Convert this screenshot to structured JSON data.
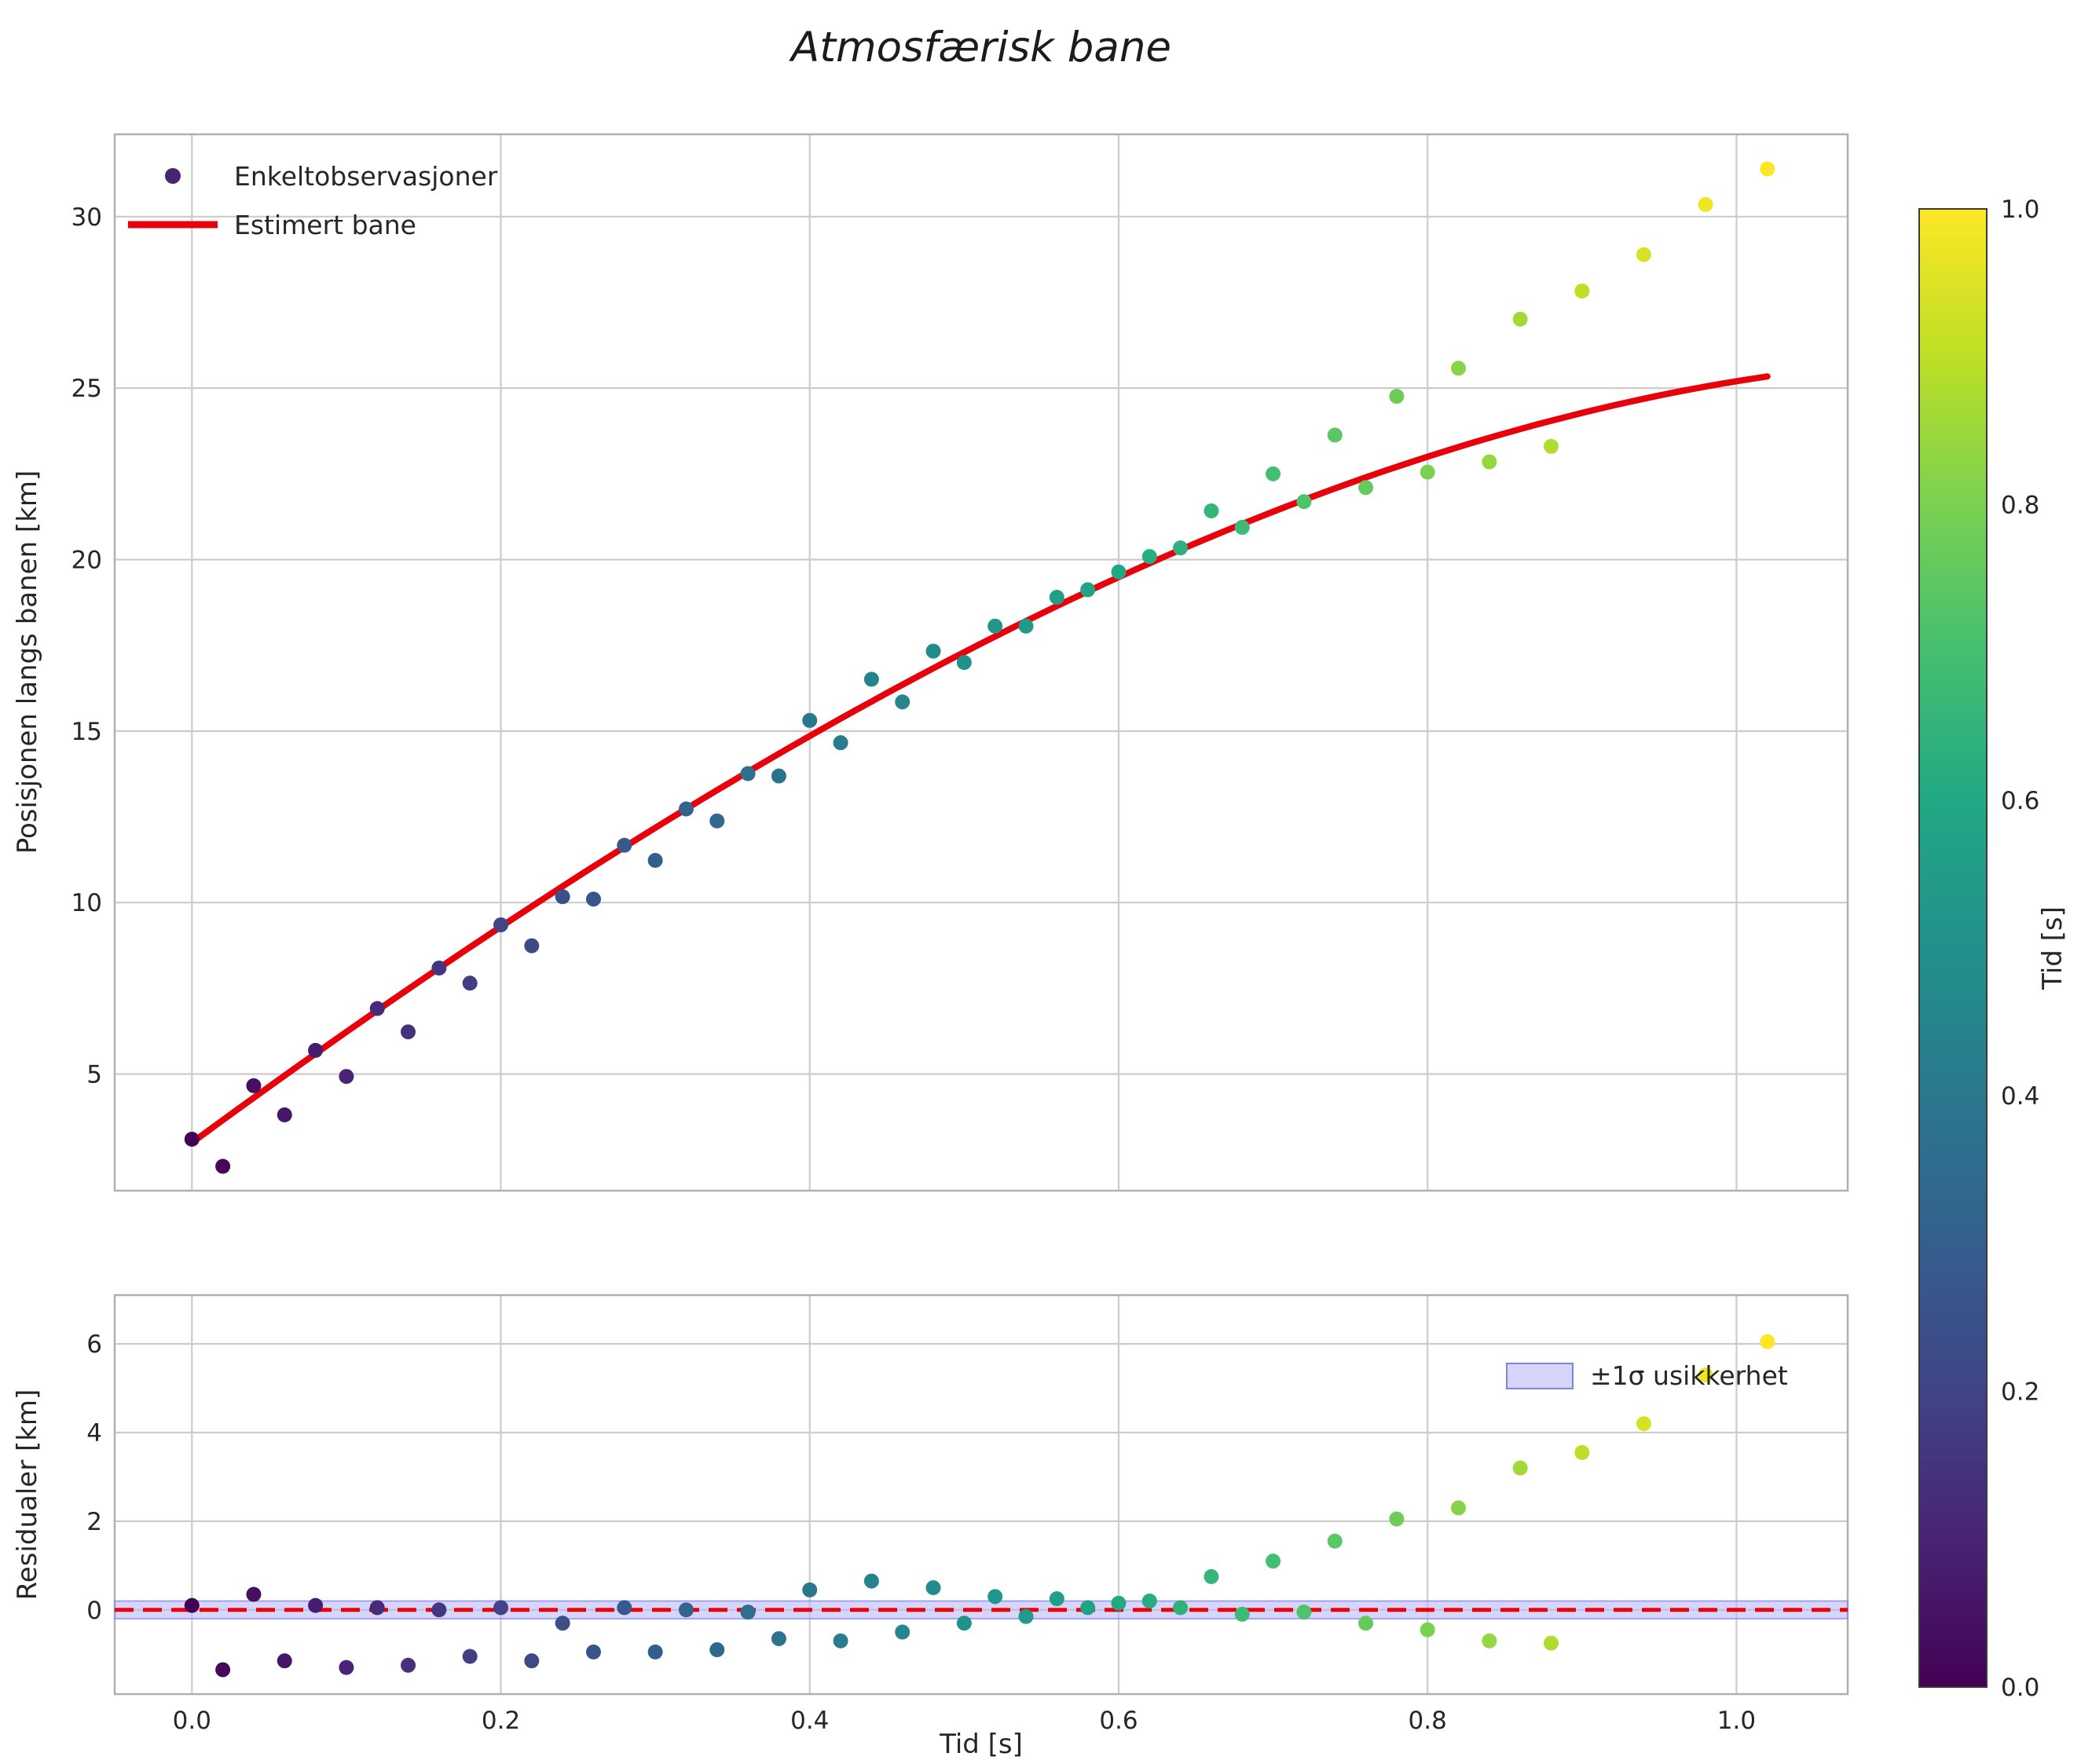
{
  "figure": {
    "title": "Atmosfærisk bane",
    "background": "#ffffff",
    "text_color": "#262626",
    "grid_color": "#cccccc",
    "spine_color": "#b0b0b0",
    "viridis_stops": [
      "#440154",
      "#482475",
      "#414487",
      "#345f8d",
      "#2a788e",
      "#21918c",
      "#22a884",
      "#44bf70",
      "#7ad151",
      "#bddf26",
      "#fde725"
    ]
  },
  "chart_data": [
    {
      "type": "scatter",
      "panel": "trajectory",
      "xlabel": "",
      "ylabel": "Posisjonen langs banen [km]",
      "xlim": [
        -0.05,
        1.072
      ],
      "ylim": [
        1.6,
        32.4
      ],
      "xticks": [
        0,
        0.2,
        0.4,
        0.6,
        0.8,
        1.0
      ],
      "xtick_labels_visible": false,
      "yticks": [
        5,
        10,
        15,
        20,
        25,
        30
      ],
      "grid": true,
      "legend": {
        "position": "upper-left",
        "entries": [
          {
            "label": "Enkeltobservasjoner",
            "handle": "marker",
            "color": "#482475"
          },
          {
            "label": "Estimert bane",
            "handle": "line",
            "color": "#e8000b"
          }
        ]
      },
      "series": [
        {
          "name": "Enkeltobservasjoner",
          "type": "scatter",
          "colormap": "viridis",
          "color_by": "x",
          "vmin": 0.0,
          "vmax": 1.0,
          "x": [
            0,
            0.02,
            0.04,
            0.06,
            0.08,
            0.1,
            0.12,
            0.14,
            0.16,
            0.18,
            0.2,
            0.22,
            0.24,
            0.26,
            0.28,
            0.3,
            0.32,
            0.34,
            0.36,
            0.38,
            0.4,
            0.42,
            0.44,
            0.46,
            0.48,
            0.5,
            0.52,
            0.54,
            0.56,
            0.58,
            0.6,
            0.62,
            0.64,
            0.66,
            0.68,
            0.7,
            0.72,
            0.74,
            0.76,
            0.78,
            0.8,
            0.82,
            0.84,
            0.86,
            0.88,
            0.9,
            0.94,
            0.98,
            1.02
          ],
          "y": [
            3.1,
            2.31,
            4.66,
            3.81,
            5.69,
            4.93,
            6.91,
            6.23,
            8.09,
            7.65,
            9.35,
            8.74,
            10.17,
            10.1,
            11.67,
            11.23,
            12.73,
            12.38,
            13.76,
            13.69,
            15.31,
            14.66,
            16.51,
            15.85,
            17.33,
            17.0,
            18.06,
            18.06,
            18.9,
            19.12,
            19.64,
            20.09,
            20.34,
            21.42,
            20.94,
            22.5,
            21.69,
            23.63,
            22.1,
            24.76,
            22.55,
            25.58,
            22.85,
            27.01,
            23.3,
            27.83,
            28.89,
            30.35,
            31.39
          ]
        },
        {
          "name": "Estimert bane",
          "type": "line",
          "color": "#e8000b",
          "linewidth": 8,
          "model": {
            "kind": "cubic-polynomial",
            "coeffs": [
              3.0,
              33.0,
              -6.8,
              -4.0
            ],
            "x_range": [
              0.0,
              1.02
            ]
          }
        }
      ]
    },
    {
      "type": "scatter",
      "panel": "residuals",
      "xlabel": "Tid [s]",
      "ylabel": "Residualer [km]",
      "xlim": [
        -0.05,
        1.072
      ],
      "ylim": [
        -1.9,
        7.1
      ],
      "xticks": [
        0,
        0.2,
        0.4,
        0.6,
        0.8,
        1.0
      ],
      "xtick_labels": [
        "0.0",
        "0.2",
        "0.4",
        "0.6",
        "0.8",
        "1.0"
      ],
      "xtick_labels_visible": true,
      "yticks": [
        0,
        2,
        4,
        6
      ],
      "grid": true,
      "zero_line": {
        "color": "#e8000b",
        "style": "dashed"
      },
      "uncertainty_band": {
        "label": "±1σ usikkerhet",
        "half_width": 0.2,
        "fill": "#b4b4f7",
        "edge": "#8181ef"
      },
      "legend": {
        "position": "upper-right",
        "entries": [
          {
            "label": "±1σ usikkerhet",
            "handle": "patch",
            "color": "#b4b4f7"
          }
        ]
      },
      "series": [
        {
          "name": "Residualer",
          "type": "scatter",
          "colormap": "viridis",
          "color_by": "x",
          "vmin": 0.0,
          "vmax": 1.0,
          "x": [
            0,
            0.02,
            0.04,
            0.06,
            0.08,
            0.1,
            0.12,
            0.14,
            0.16,
            0.18,
            0.2,
            0.22,
            0.24,
            0.26,
            0.28,
            0.3,
            0.32,
            0.34,
            0.36,
            0.38,
            0.4,
            0.42,
            0.44,
            0.46,
            0.48,
            0.5,
            0.52,
            0.54,
            0.56,
            0.58,
            0.6,
            0.62,
            0.64,
            0.66,
            0.68,
            0.7,
            0.72,
            0.74,
            0.76,
            0.78,
            0.8,
            0.82,
            0.84,
            0.86,
            0.88,
            0.9,
            0.94,
            0.98,
            1.02
          ],
          "y": [
            0.1,
            -1.35,
            0.35,
            -1.15,
            0.1,
            -1.3,
            0.05,
            -1.25,
            0,
            -1.05,
            0.05,
            -1.15,
            -0.3,
            -0.95,
            0.05,
            -0.95,
            0,
            -0.9,
            -0.05,
            -0.65,
            0.45,
            -0.7,
            0.65,
            -0.5,
            0.5,
            -0.3,
            0.3,
            -0.15,
            0.25,
            0.05,
            0.15,
            0.2,
            0.05,
            0.75,
            -0.1,
            1.1,
            -0.05,
            1.55,
            -0.3,
            2.05,
            -0.45,
            2.3,
            -0.7,
            3.2,
            -0.75,
            3.55,
            4.2,
            5.3,
            6.05
          ]
        }
      ]
    }
  ],
  "colorbar": {
    "label": "Tid [s]",
    "cmap": "viridis",
    "vmin": 0.0,
    "vmax": 1.0,
    "tick_labels": [
      "0.0",
      "0.2",
      "0.4",
      "0.6",
      "0.8",
      "1.0"
    ]
  }
}
